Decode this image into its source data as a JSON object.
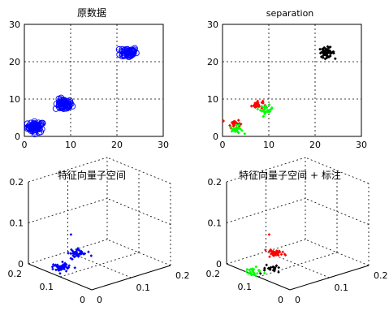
{
  "chart_data": [
    {
      "type": "scatter",
      "title": "原数据",
      "xlim": [
        0,
        30
      ],
      "ylim": [
        0,
        30
      ],
      "xticks": [
        "0",
        "10",
        "20",
        "30"
      ],
      "yticks": [
        "0",
        "10",
        "20",
        "30"
      ],
      "grid": true,
      "marker": "circle",
      "clusters": [
        {
          "color": "#0000ff",
          "center": [
            2.5,
            2.5
          ],
          "spread": [
            1.6,
            1.3
          ],
          "count": 55
        },
        {
          "color": "#0000ff",
          "center": [
            8.5,
            8.5
          ],
          "spread": [
            1.6,
            1.3
          ],
          "count": 55
        },
        {
          "color": "#0000ff",
          "center": [
            22.5,
            22.5
          ],
          "spread": [
            1.6,
            1.3
          ],
          "count": 55
        }
      ]
    },
    {
      "type": "scatter",
      "title": "separation",
      "xlim": [
        0,
        30
      ],
      "ylim": [
        0,
        30
      ],
      "xticks": [
        "0",
        "10",
        "20",
        "30"
      ],
      "yticks": [
        "0",
        "10",
        "20",
        "30"
      ],
      "grid": true,
      "marker": "diamond",
      "clusters": [
        {
          "color": "#ff0000",
          "center": [
            2.5,
            3.5
          ],
          "spread": [
            1.2,
            1.0
          ],
          "count": 25
        },
        {
          "color": "#00ff00",
          "center": [
            3.0,
            1.8
          ],
          "spread": [
            1.2,
            1.0
          ],
          "count": 25
        },
        {
          "color": "#ff0000",
          "center": [
            7.5,
            8.5
          ],
          "spread": [
            1.1,
            1.0
          ],
          "count": 25
        },
        {
          "color": "#00ff00",
          "center": [
            9.5,
            7.2
          ],
          "spread": [
            1.2,
            1.0
          ],
          "count": 25
        },
        {
          "color": "#000000",
          "center": [
            22.5,
            22.5
          ],
          "spread": [
            1.5,
            1.2
          ],
          "count": 55
        }
      ]
    },
    {
      "type": "scatter3d",
      "title": "特征向量子空间",
      "zticks": [
        "0",
        "0.1",
        "0.2"
      ],
      "xticks": [
        "0",
        "0.1",
        "0.2"
      ],
      "yticks": [
        "0",
        "0.1",
        "0.2"
      ],
      "grid": true,
      "clusters": [
        {
          "color": "#0000ff",
          "center": [
            0.03,
            0.13,
            0.005
          ],
          "spread": [
            0.02,
            0.02,
            0.003
          ],
          "count": 55
        },
        {
          "color": "#0000ff",
          "center": [
            0.1,
            0.17,
            0.005
          ],
          "spread": [
            0.015,
            0.015,
            0.003
          ],
          "count": 45
        }
      ],
      "outliers": [
        {
          "color": "#0000ff",
          "pos": [
            0.1,
            0.19,
            0.045
          ]
        }
      ]
    },
    {
      "type": "scatter3d",
      "title": "特征向量子空间 + 标注",
      "zticks": [
        "0",
        "0.1",
        "0.2"
      ],
      "xticks": [
        "0",
        "0.1",
        "0.2"
      ],
      "yticks": [
        "0",
        "0.1",
        "0.2"
      ],
      "grid": true,
      "clusters": [
        {
          "color": "#00ff00",
          "center": [
            0.01,
            0.12,
            0.005
          ],
          "spread": [
            0.015,
            0.015,
            0.003
          ],
          "count": 25
        },
        {
          "color": "#000000",
          "center": [
            0.045,
            0.11,
            0.003
          ],
          "spread": [
            0.015,
            0.012,
            0.002
          ],
          "count": 25
        },
        {
          "color": "#ff0000",
          "center": [
            0.1,
            0.17,
            0.005
          ],
          "spread": [
            0.015,
            0.015,
            0.003
          ],
          "count": 45
        }
      ],
      "outliers": [
        {
          "color": "#ff0000",
          "pos": [
            0.1,
            0.19,
            0.045
          ]
        }
      ]
    }
  ]
}
